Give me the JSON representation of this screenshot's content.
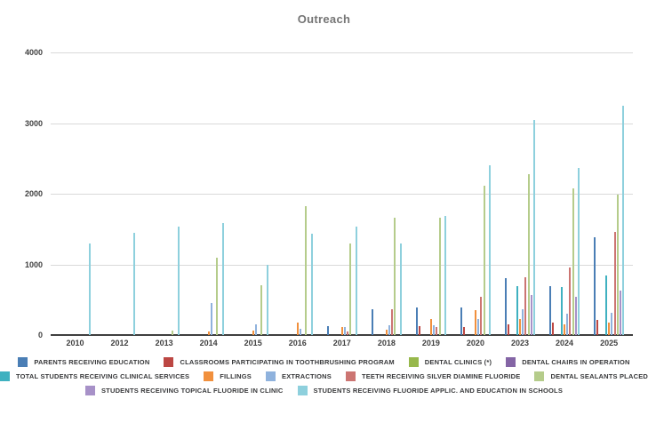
{
  "title": "Outreach",
  "y_axis": {
    "tick_labels": [
      "4000",
      "3000",
      "2000",
      "1000",
      "0"
    ]
  },
  "chart_data": {
    "type": "bar",
    "title": "Outreach",
    "categories": [
      "2010",
      "2012",
      "2013",
      "2014",
      "2015",
      "2016",
      "2017",
      "2018",
      "2019",
      "2020",
      "2023",
      "2024",
      "2025"
    ],
    "series": [
      {
        "name": "PARENTS RECEIVING EDUCATION",
        "color": "#4a7eb5",
        "values": [
          0,
          0,
          0,
          0,
          0,
          0,
          125,
          370,
          390,
          390,
          800,
          690,
          1390
        ]
      },
      {
        "name": "CLASSROOMS PARTICIPATING IN TOOTHBRUSHING PROGRAM",
        "color": "#bc4743",
        "values": [
          0,
          0,
          0,
          0,
          0,
          0,
          0,
          0,
          127,
          115,
          150,
          175,
          215
        ]
      },
      {
        "name": "DENTAL CLINICS (*)",
        "color": "#97b84c",
        "values": [
          0,
          0,
          0,
          0,
          0,
          0,
          0,
          0,
          0,
          0,
          0,
          0,
          0
        ]
      },
      {
        "name": "DENTAL CHAIRS IN OPERATION",
        "color": "#8465a5",
        "values": [
          0,
          0,
          0,
          0,
          0,
          0,
          0,
          0,
          0,
          0,
          0,
          0,
          0
        ]
      },
      {
        "name": "TOTAL STUDENTS RECEIVING CLINICAL SERVICES",
        "color": "#3fb1c0",
        "values": [
          0,
          0,
          0,
          0,
          0,
          0,
          0,
          0,
          0,
          0,
          695,
          680,
          840
        ]
      },
      {
        "name": "FILLINGS",
        "color": "#f1903d",
        "values": [
          0,
          0,
          0,
          50,
          60,
          175,
          115,
          75,
          230,
          355,
          230,
          150,
          180
        ]
      },
      {
        "name": "EXTRACTIONS",
        "color": "#8fb2dd",
        "values": [
          0,
          0,
          0,
          455,
          150,
          90,
          110,
          140,
          140,
          230,
          365,
          305,
          320
        ]
      },
      {
        "name": "TEETH RECEIVING SILVER DIAMINE FLUORIDE",
        "color": "#cc7572",
        "values": [
          0,
          0,
          0,
          0,
          0,
          0,
          55,
          370,
          115,
          545,
          820,
          960,
          1460
        ]
      },
      {
        "name": "DENTAL SEALANTS PLACED",
        "color": "#b5cc8b",
        "values": [
          0,
          0,
          60,
          1090,
          700,
          1820,
          1300,
          1660,
          1660,
          2110,
          2280,
          2070,
          1990
        ]
      },
      {
        "name": "STUDENTS RECEIVING TOPICAL FLUORIDE IN CLINIC",
        "color": "#a791c8",
        "values": [
          0,
          0,
          0,
          0,
          0,
          0,
          0,
          0,
          0,
          0,
          570,
          540,
          635
        ]
      },
      {
        "name": "STUDENTS RECEIVING FLUORIDE APPLIC. AND EDUCATION IN SCHOOLS",
        "color": "#8ed0dd",
        "values": [
          1290,
          1450,
          1530,
          1580,
          1000,
          1430,
          1530,
          1290,
          1690,
          2400,
          3050,
          2370,
          3240
        ]
      }
    ],
    "ylim": [
      0,
      4000
    ],
    "y_tick_values": [
      0,
      1000,
      2000,
      3000,
      4000
    ],
    "grid": "horizontal",
    "legend_position": "bottom",
    "legend_rows": [
      [
        0,
        1,
        2,
        3
      ],
      [
        4,
        5,
        6,
        7,
        8
      ],
      [
        9,
        10
      ]
    ]
  }
}
